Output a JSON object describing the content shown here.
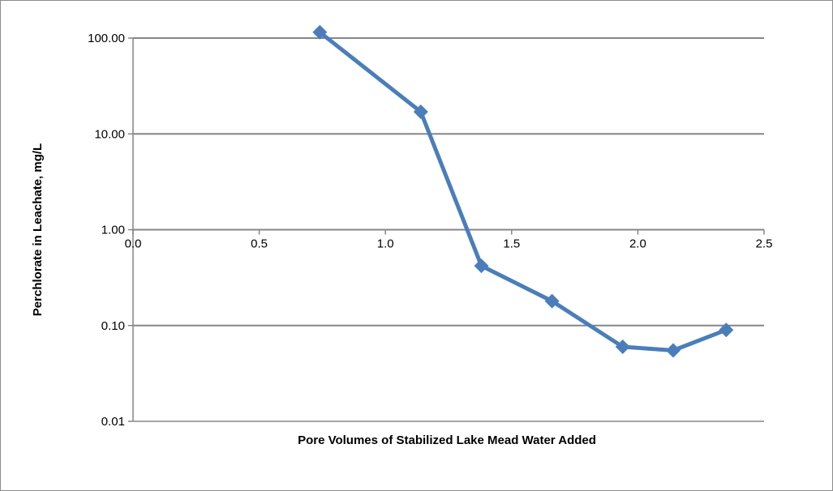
{
  "chart_data": {
    "type": "line",
    "title": "",
    "xlabel": "Pore Volumes of Stabilized  Lake Mead  Water Added",
    "ylabel": "Perchlorate in Leachate, mg/L",
    "x_scale": "linear",
    "y_scale": "log",
    "xlim": [
      0,
      2.5
    ],
    "ylim": [
      0.01,
      100
    ],
    "x_ticks": [
      "0.0",
      "0.5",
      "1.0",
      "1.5",
      "2.0",
      "2.5"
    ],
    "y_ticks": [
      "100.00",
      "10.00",
      "1.00",
      "0.10",
      "0.01"
    ],
    "grid": "horizontal",
    "legend": "none",
    "series": [
      {
        "color": "#4a7ebb",
        "marker": "diamond",
        "x": [
          0.74,
          1.14,
          1.38,
          1.66,
          1.94,
          2.14,
          2.35
        ],
        "y": [
          115,
          17,
          0.42,
          0.18,
          0.06,
          0.055,
          0.09
        ]
      }
    ]
  }
}
